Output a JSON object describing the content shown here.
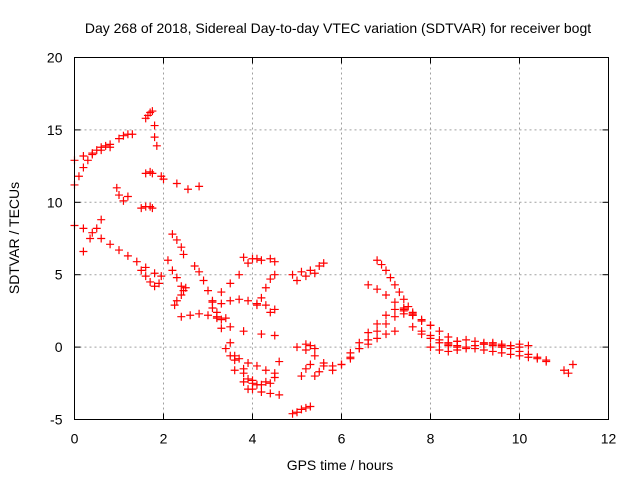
{
  "chart_data": {
    "type": "scatter",
    "title": "Day 268 of 2018, Sidereal Day-to-day VTEC variation (SDTVAR) for receiver bogt",
    "xlabel": "GPS time / hours",
    "ylabel": "SDTVAR / TECUs",
    "xlim": [
      0,
      12
    ],
    "ylim": [
      -5,
      20
    ],
    "xticks": [
      "0",
      "2",
      "4",
      "6",
      "8",
      "10",
      "12"
    ],
    "yticks": [
      "-5",
      "0",
      "5",
      "10",
      "15",
      "20"
    ],
    "grid": true,
    "marker": "+",
    "color": "#ff0000",
    "series": [
      {
        "name": "s1",
        "x": [
          0.0,
          0.1,
          0.2,
          0.3,
          0.4,
          0.5,
          0.6,
          0.7,
          0.8
        ],
        "y": [
          11.2,
          11.8,
          12.4,
          12.9,
          13.3,
          13.6,
          13.8,
          13.9,
          14.0
        ]
      },
      {
        "name": "s2",
        "x": [
          0.0,
          0.2,
          0.4,
          0.6,
          0.8
        ],
        "y": [
          12.9,
          13.2,
          13.4,
          13.6,
          13.8
        ]
      },
      {
        "name": "s3",
        "x": [
          1.0,
          1.1,
          1.2,
          1.3
        ],
        "y": [
          14.4,
          14.6,
          14.7,
          14.7
        ]
      },
      {
        "name": "s4",
        "x": [
          0.95,
          1.0,
          1.1,
          1.2
        ],
        "y": [
          11.0,
          10.5,
          10.1,
          10.4
        ]
      },
      {
        "name": "s5",
        "x": [
          1.6,
          1.65,
          1.7,
          1.75,
          1.8,
          1.8,
          1.85
        ],
        "y": [
          15.8,
          16.0,
          16.2,
          16.3,
          15.3,
          14.5,
          13.9
        ]
      },
      {
        "name": "s6",
        "x": [
          1.6,
          1.7,
          1.75
        ],
        "y": [
          12.0,
          12.1,
          12.0
        ]
      },
      {
        "name": "s7",
        "x": [
          1.5,
          1.6,
          1.7,
          1.75
        ],
        "y": [
          9.6,
          9.7,
          9.7,
          9.6
        ]
      },
      {
        "name": "s8",
        "x": [
          1.95,
          2.0,
          2.3,
          2.55,
          2.8
        ],
        "y": [
          11.8,
          11.6,
          11.3,
          10.9,
          11.1
        ]
      },
      {
        "name": "s9",
        "x": [
          0.0,
          0.2,
          0.4,
          0.6,
          0.8,
          1.0,
          1.2,
          1.4,
          1.6,
          1.8,
          1.95
        ],
        "y": [
          8.4,
          8.2,
          7.9,
          7.5,
          7.1,
          6.7,
          6.3,
          5.9,
          5.5,
          5.1,
          4.9
        ]
      },
      {
        "name": "s10",
        "x": [
          0.2,
          0.35,
          0.5,
          0.6
        ],
        "y": [
          6.6,
          7.5,
          8.2,
          8.8
        ]
      },
      {
        "name": "s11",
        "x": [
          1.5,
          1.6,
          1.7,
          1.8,
          1.9
        ],
        "y": [
          5.3,
          4.9,
          4.5,
          4.2,
          4.4
        ]
      },
      {
        "name": "s12",
        "x": [
          2.2,
          2.3,
          2.4,
          2.45
        ],
        "y": [
          7.8,
          7.4,
          6.9,
          6.4
        ]
      },
      {
        "name": "s13",
        "x": [
          2.1,
          2.2,
          2.3,
          2.4
        ],
        "y": [
          6.0,
          5.3,
          4.8,
          4.2
        ]
      },
      {
        "name": "s14",
        "x": [
          2.25,
          2.3,
          2.4,
          2.45,
          2.5
        ],
        "y": [
          2.9,
          3.2,
          3.6,
          3.9,
          4.1
        ]
      },
      {
        "name": "s15",
        "x": [
          2.4,
          2.6,
          2.8,
          3.0,
          3.2,
          3.4
        ],
        "y": [
          2.1,
          2.2,
          2.3,
          2.2,
          2.1,
          2.0
        ]
      },
      {
        "name": "s16",
        "x": [
          2.7,
          2.8,
          2.9,
          3.0,
          3.1,
          3.2,
          3.3,
          3.5,
          3.8,
          4.2,
          4.5
        ],
        "y": [
          5.6,
          5.2,
          4.6,
          3.9,
          3.1,
          2.4,
          1.9,
          1.4,
          1.1,
          0.9,
          0.8
        ]
      },
      {
        "name": "s17",
        "x": [
          3.1,
          3.3,
          3.5,
          3.7,
          3.9,
          4.1,
          4.3
        ],
        "y": [
          2.7,
          3.0,
          3.2,
          3.3,
          3.2,
          3.0,
          2.9
        ]
      },
      {
        "name": "s18",
        "x": [
          3.2,
          3.3,
          3.5,
          3.6,
          3.8,
          3.9,
          4.0
        ],
        "y": [
          2.0,
          1.3,
          0.3,
          -0.6,
          -1.5,
          -2.2,
          -2.5
        ]
      },
      {
        "name": "s19",
        "x": [
          3.4,
          3.6,
          3.8,
          4.0,
          4.2,
          4.4
        ],
        "y": [
          -0.1,
          -0.9,
          -1.8,
          -2.3,
          -2.6,
          -2.5
        ]
      },
      {
        "name": "s20",
        "x": [
          3.5,
          3.7,
          3.9,
          4.1,
          4.3,
          4.5
        ],
        "y": [
          -0.6,
          -0.8,
          -1.1,
          -1.3,
          -1.6,
          -1.8
        ]
      },
      {
        "name": "s21",
        "x": [
          3.6,
          3.8,
          4.0,
          4.2,
          4.4,
          4.6
        ],
        "y": [
          -1.6,
          -2.4,
          -2.9,
          -3.1,
          -3.2,
          -3.3
        ]
      },
      {
        "name": "s22",
        "x": [
          3.9,
          4.1,
          4.3,
          4.5
        ],
        "y": [
          -2.9,
          -2.6,
          -2.4,
          -2.1
        ]
      },
      {
        "name": "s23",
        "x": [
          3.1,
          3.3,
          3.5,
          3.7,
          3.9,
          4.1
        ],
        "y": [
          3.2,
          3.8,
          4.4,
          5.0,
          5.8,
          6.1
        ]
      },
      {
        "name": "s24",
        "x": [
          3.8,
          4.0,
          4.2,
          4.4,
          4.5
        ],
        "y": [
          6.2,
          6.1,
          6.0,
          6.1,
          5.9
        ]
      },
      {
        "name": "s25",
        "x": [
          4.1,
          4.2,
          4.3,
          4.4,
          4.5
        ],
        "y": [
          2.9,
          3.4,
          4.1,
          4.7,
          5.0
        ]
      },
      {
        "name": "s26",
        "x": [
          4.4,
          4.5
        ],
        "y": [
          2.4,
          2.6
        ]
      },
      {
        "name": "s27",
        "x": [
          4.6
        ],
        "y": [
          -1.0
        ]
      },
      {
        "name": "s28",
        "x": [
          4.9,
          5.0,
          5.1,
          5.2,
          5.3
        ],
        "y": [
          -4.6,
          -4.5,
          -4.3,
          -4.2,
          -4.1
        ]
      },
      {
        "name": "s29",
        "x": [
          4.9,
          5.1,
          5.3,
          5.5,
          5.6
        ],
        "y": [
          5.0,
          5.2,
          5.3,
          5.6,
          5.8
        ]
      },
      {
        "name": "s30",
        "x": [
          5.0,
          5.2,
          5.4
        ],
        "y": [
          4.6,
          4.9,
          5.1
        ]
      },
      {
        "name": "s31",
        "x": [
          5.0,
          5.2,
          5.3,
          5.4
        ],
        "y": [
          0.0,
          0.2,
          0.1,
          -0.1
        ]
      },
      {
        "name": "s32",
        "x": [
          5.1,
          5.2,
          5.3
        ],
        "y": [
          -2.0,
          -1.5,
          -1.2
        ]
      },
      {
        "name": "s33",
        "x": [
          5.4,
          5.5,
          5.6
        ],
        "y": [
          -2.0,
          -1.7,
          -1.3
        ]
      },
      {
        "name": "s34",
        "x": [
          5.2,
          5.4,
          5.6,
          5.8,
          6.0,
          6.2
        ],
        "y": [
          -0.2,
          -0.6,
          -1.1,
          -1.3,
          -1.2,
          -0.8
        ]
      },
      {
        "name": "s35",
        "x": [
          5.8,
          6.0,
          6.2,
          6.4,
          6.6,
          6.8,
          7.0,
          7.2,
          7.4,
          7.6
        ],
        "y": [
          -1.6,
          -1.2,
          -0.7,
          -0.1,
          0.5,
          1.1,
          1.6,
          2.1,
          2.3,
          2.2
        ]
      },
      {
        "name": "s36",
        "x": [
          6.2,
          6.4,
          6.6,
          6.8,
          7.0,
          7.2,
          7.4
        ],
        "y": [
          -0.4,
          0.3,
          1.0,
          1.6,
          2.2,
          2.6,
          2.5
        ]
      },
      {
        "name": "s37",
        "x": [
          6.4,
          6.6,
          6.8,
          7.0,
          7.2
        ],
        "y": [
          -0.1,
          0.2,
          0.6,
          0.9,
          1.1
        ]
      },
      {
        "name": "s38",
        "x": [
          6.8,
          6.9,
          7.0,
          7.1,
          7.2,
          7.3,
          7.4,
          7.5,
          7.6
        ],
        "y": [
          6.0,
          5.7,
          5.3,
          4.8,
          4.3,
          3.8,
          3.3,
          2.8,
          2.4
        ]
      },
      {
        "name": "s39",
        "x": [
          6.6,
          6.8,
          7.0,
          7.2,
          7.4,
          7.6,
          7.8,
          8.0
        ],
        "y": [
          4.3,
          4.0,
          3.6,
          3.1,
          2.6,
          2.2,
          1.8,
          1.5
        ]
      },
      {
        "name": "s40",
        "x": [
          7.4,
          7.6,
          7.8,
          8.0,
          8.2,
          8.4,
          8.6
        ],
        "y": [
          2.7,
          2.3,
          1.9,
          1.5,
          1.1,
          0.7,
          0.4
        ]
      },
      {
        "name": "s41",
        "x": [
          7.6,
          7.8,
          8.0,
          8.2,
          8.4,
          8.6,
          8.8
        ],
        "y": [
          1.4,
          1.1,
          0.8,
          0.5,
          0.3,
          0.1,
          0.0
        ]
      },
      {
        "name": "s42",
        "x": [
          7.8,
          8.0,
          8.2,
          8.4,
          8.6
        ],
        "y": [
          0.9,
          0.6,
          0.3,
          0.1,
          0.0
        ]
      },
      {
        "name": "s43",
        "x": [
          8.0,
          8.2,
          8.4,
          8.6,
          8.8,
          9.0,
          9.2,
          9.4,
          9.6,
          9.8,
          10.0,
          10.2,
          10.4,
          10.6
        ],
        "y": [
          0.0,
          -0.2,
          -0.3,
          -0.2,
          -0.1,
          -0.1,
          -0.2,
          -0.3,
          -0.4,
          -0.5,
          -0.6,
          -0.7,
          -0.8,
          -0.9
        ]
      },
      {
        "name": "s44",
        "x": [
          8.4,
          8.6,
          8.8,
          9.0,
          9.2,
          9.4,
          9.6,
          9.8,
          10.0
        ],
        "y": [
          0.2,
          0.4,
          0.5,
          0.4,
          0.3,
          0.3,
          0.2,
          0.1,
          0.0
        ]
      },
      {
        "name": "s45",
        "x": [
          9.0,
          9.2,
          9.4,
          9.6,
          9.8,
          10.0,
          10.2,
          10.4,
          10.6
        ],
        "y": [
          0.1,
          0.2,
          0.2,
          0.1,
          -0.1,
          -0.3,
          -0.5,
          -0.7,
          -1.0
        ]
      },
      {
        "name": "s46",
        "x": [
          9.2,
          9.4,
          9.6,
          9.8,
          10.0,
          10.2
        ],
        "y": [
          0.2,
          0.1,
          0.0,
          0.1,
          0.2,
          0.1
        ]
      },
      {
        "name": "s47",
        "x": [
          11.0,
          11.1,
          11.2
        ],
        "y": [
          -1.6,
          -1.8,
          -1.2
        ]
      }
    ]
  }
}
